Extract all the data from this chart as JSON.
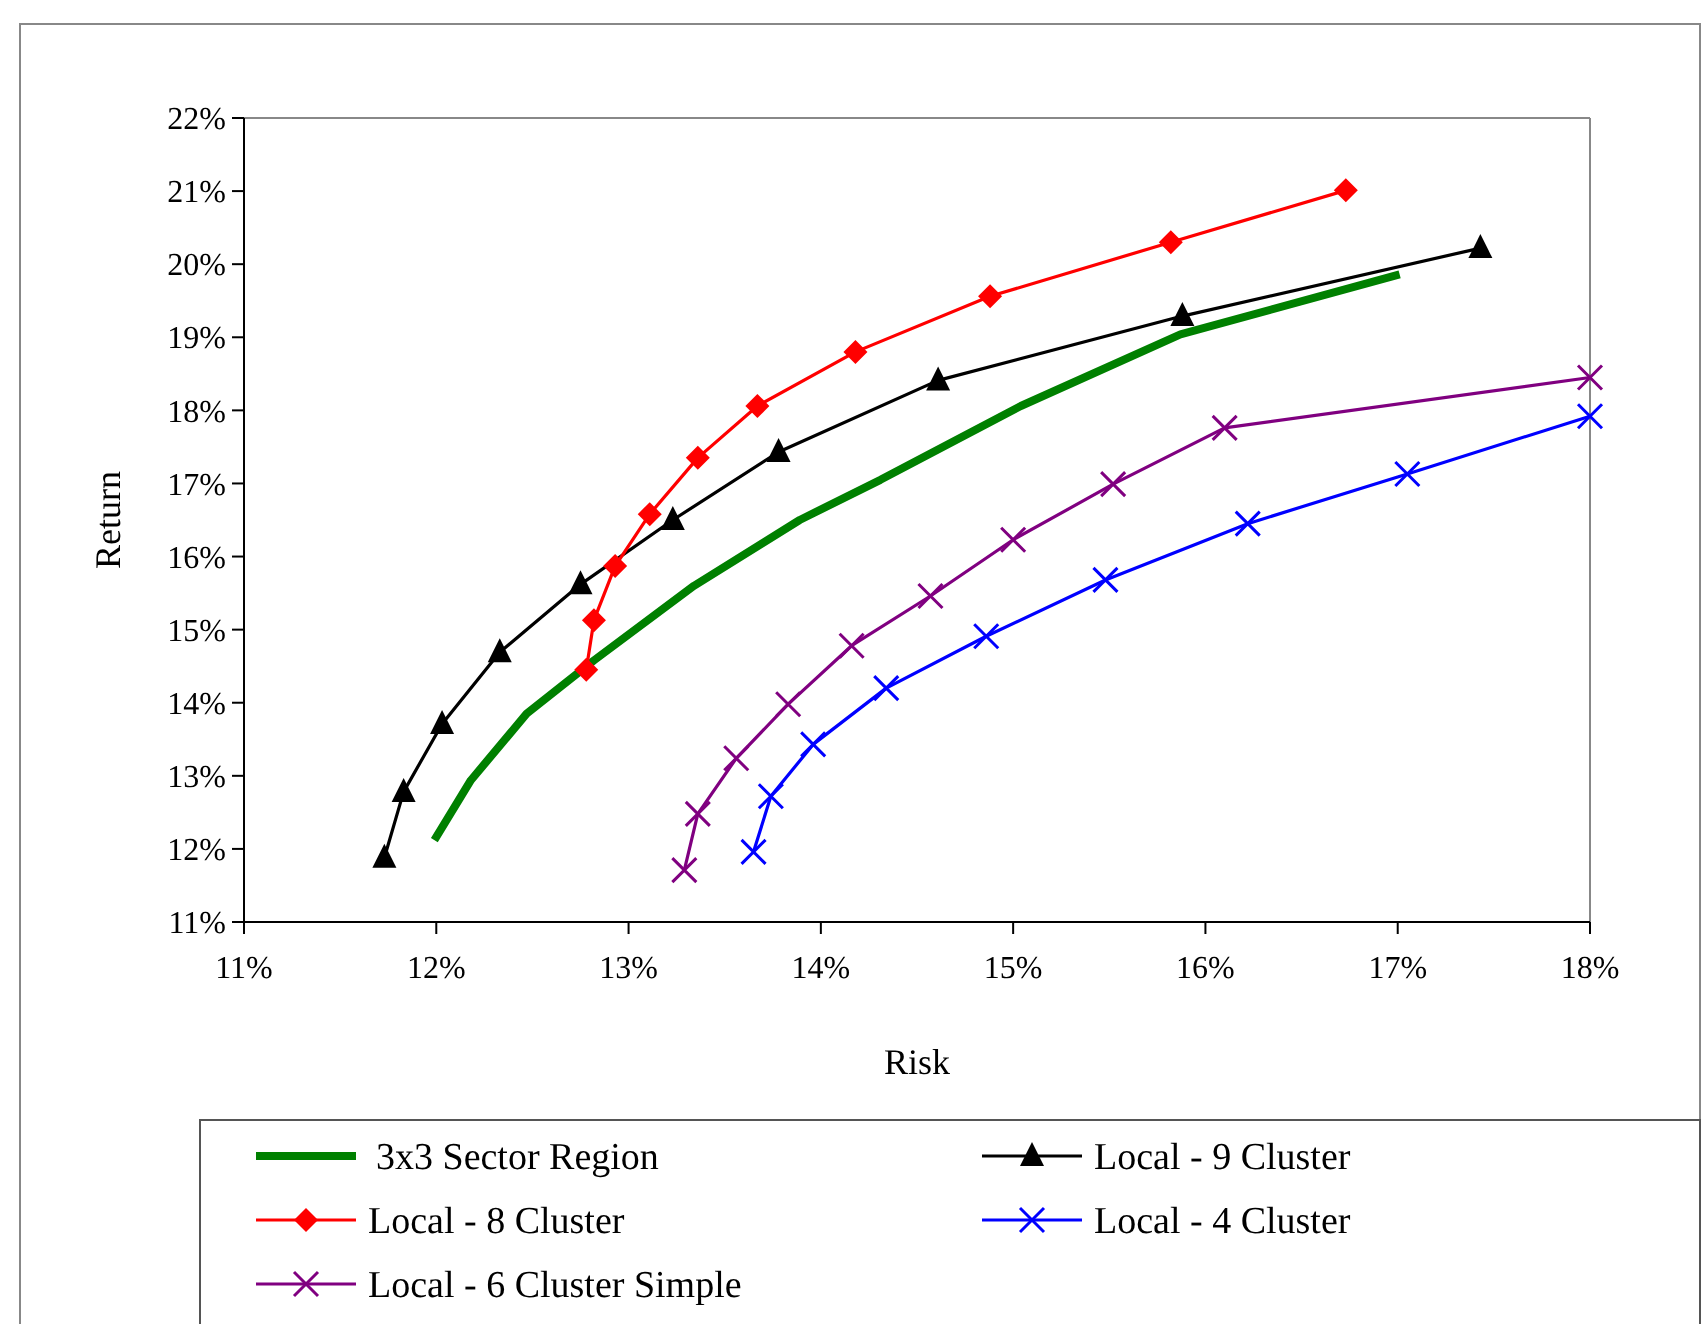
{
  "chart_data": {
    "type": "line",
    "xlabel": "Risk",
    "ylabel": "Return",
    "xlim": [
      11,
      18
    ],
    "ylim": [
      11,
      22
    ],
    "xticks": [
      {
        "value": 11,
        "label": "11%"
      },
      {
        "value": 12,
        "label": "12%"
      },
      {
        "value": 13,
        "label": "13%"
      },
      {
        "value": 14,
        "label": "14%"
      },
      {
        "value": 15,
        "label": "15%"
      },
      {
        "value": 16,
        "label": "16%"
      },
      {
        "value": 17,
        "label": "17%"
      },
      {
        "value": 18,
        "label": "18%"
      }
    ],
    "yticks": [
      {
        "value": 11,
        "label": "11%"
      },
      {
        "value": 12,
        "label": "12%"
      },
      {
        "value": 13,
        "label": "13%"
      },
      {
        "value": 14,
        "label": "14%"
      },
      {
        "value": 15,
        "label": "15%"
      },
      {
        "value": 16,
        "label": "16%"
      },
      {
        "value": 17,
        "label": "17%"
      },
      {
        "value": 18,
        "label": "18%"
      },
      {
        "value": 19,
        "label": "19%"
      },
      {
        "value": 20,
        "label": "20%"
      },
      {
        "value": 21,
        "label": "21%"
      },
      {
        "value": 22,
        "label": "22%"
      }
    ],
    "grid": false,
    "legend": "bottom",
    "series": [
      {
        "name": "3x3 Sector Region",
        "color": "#008000",
        "marker": "none",
        "x": [
          11.99,
          12.18,
          12.47,
          12.82,
          13.34,
          13.89,
          14.31,
          15.04,
          15.87,
          17.01
        ],
        "values": [
          12.12,
          12.94,
          13.85,
          14.58,
          15.6,
          16.5,
          17.05,
          18.06,
          19.04,
          19.86
        ]
      },
      {
        "name": "Local - 9 Cluster",
        "color": "#000000",
        "marker": "triangle",
        "x": [
          11.73,
          11.83,
          12.03,
          12.33,
          12.75,
          13.23,
          13.78,
          14.61,
          15.88,
          17.43
        ],
        "values": [
          11.88,
          12.78,
          13.71,
          14.69,
          15.62,
          16.5,
          17.43,
          18.41,
          19.29,
          20.22
        ]
      },
      {
        "name": "Local - 8 Cluster",
        "color": "#ff0000",
        "marker": "diamond",
        "x": [
          12.78,
          12.82,
          12.93,
          13.11,
          13.36,
          13.67,
          14.18,
          14.88,
          15.82,
          16.73
        ],
        "values": [
          14.45,
          15.13,
          15.87,
          16.58,
          17.35,
          18.06,
          18.8,
          19.56,
          20.3,
          21.01
        ]
      },
      {
        "name": "Local - 4 Cluster",
        "color": "#0000ff",
        "marker": "cross",
        "x": [
          13.65,
          13.74,
          13.96,
          14.34,
          14.86,
          15.48,
          16.22,
          17.05,
          18.0
        ],
        "values": [
          11.96,
          12.72,
          13.43,
          14.2,
          14.91,
          15.68,
          16.45,
          17.13,
          17.92
        ]
      },
      {
        "name": "Local - 6 Cluster Simple",
        "color": "#800080",
        "marker": "cross",
        "x": [
          13.29,
          13.36,
          13.56,
          13.83,
          14.16,
          14.57,
          15.0,
          15.52,
          16.1,
          18.0
        ],
        "values": [
          11.71,
          12.48,
          13.24,
          13.98,
          14.78,
          15.46,
          16.23,
          16.99,
          17.76,
          18.45
        ]
      }
    ]
  }
}
